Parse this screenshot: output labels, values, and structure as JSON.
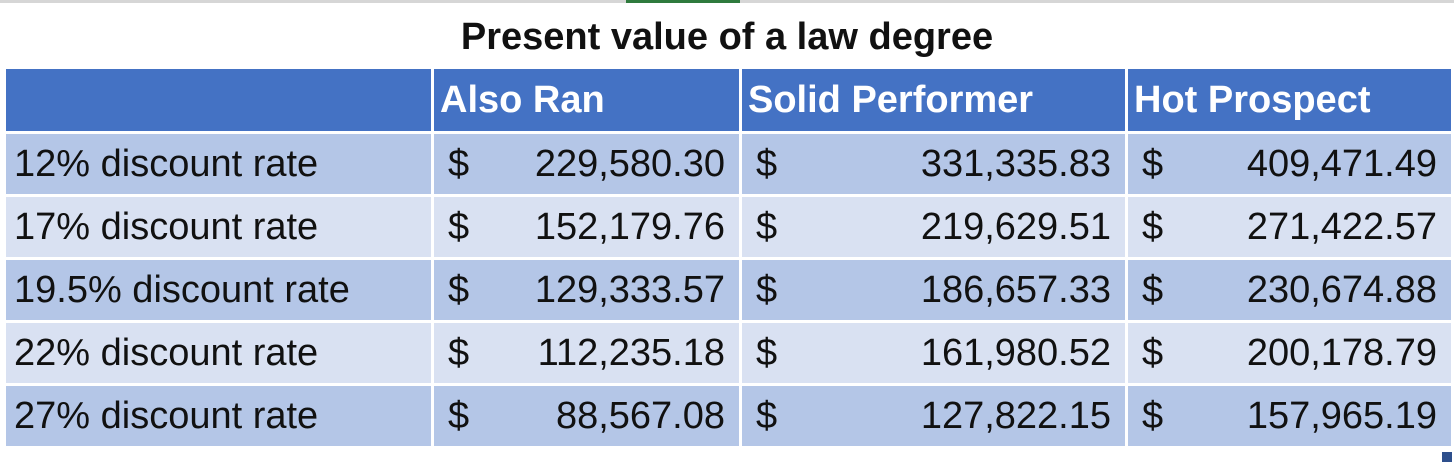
{
  "title": "Present value of a law degree",
  "columns": [
    "",
    "Also Ran",
    "Solid Performer",
    "Hot Prospect"
  ],
  "currency_symbol": "$",
  "rows": [
    {
      "label": "12% discount rate",
      "values": [
        "229,580.30",
        "331,335.83",
        "409,471.49"
      ]
    },
    {
      "label": "17% discount rate",
      "values": [
        "152,179.76",
        "219,629.51",
        "271,422.57"
      ]
    },
    {
      "label": "19.5% discount rate",
      "values": [
        "129,333.57",
        "186,657.33",
        "230,674.88"
      ]
    },
    {
      "label": "22% discount rate",
      "values": [
        "112,235.18",
        "161,980.52",
        "200,178.79"
      ]
    },
    {
      "label": "27% discount rate",
      "values": [
        "88,567.08",
        "127,822.15",
        "157,965.19"
      ]
    }
  ],
  "colors": {
    "header_bg": "#4472c4",
    "row_dark": "#b4c6e7",
    "row_light": "#d9e1f2"
  }
}
